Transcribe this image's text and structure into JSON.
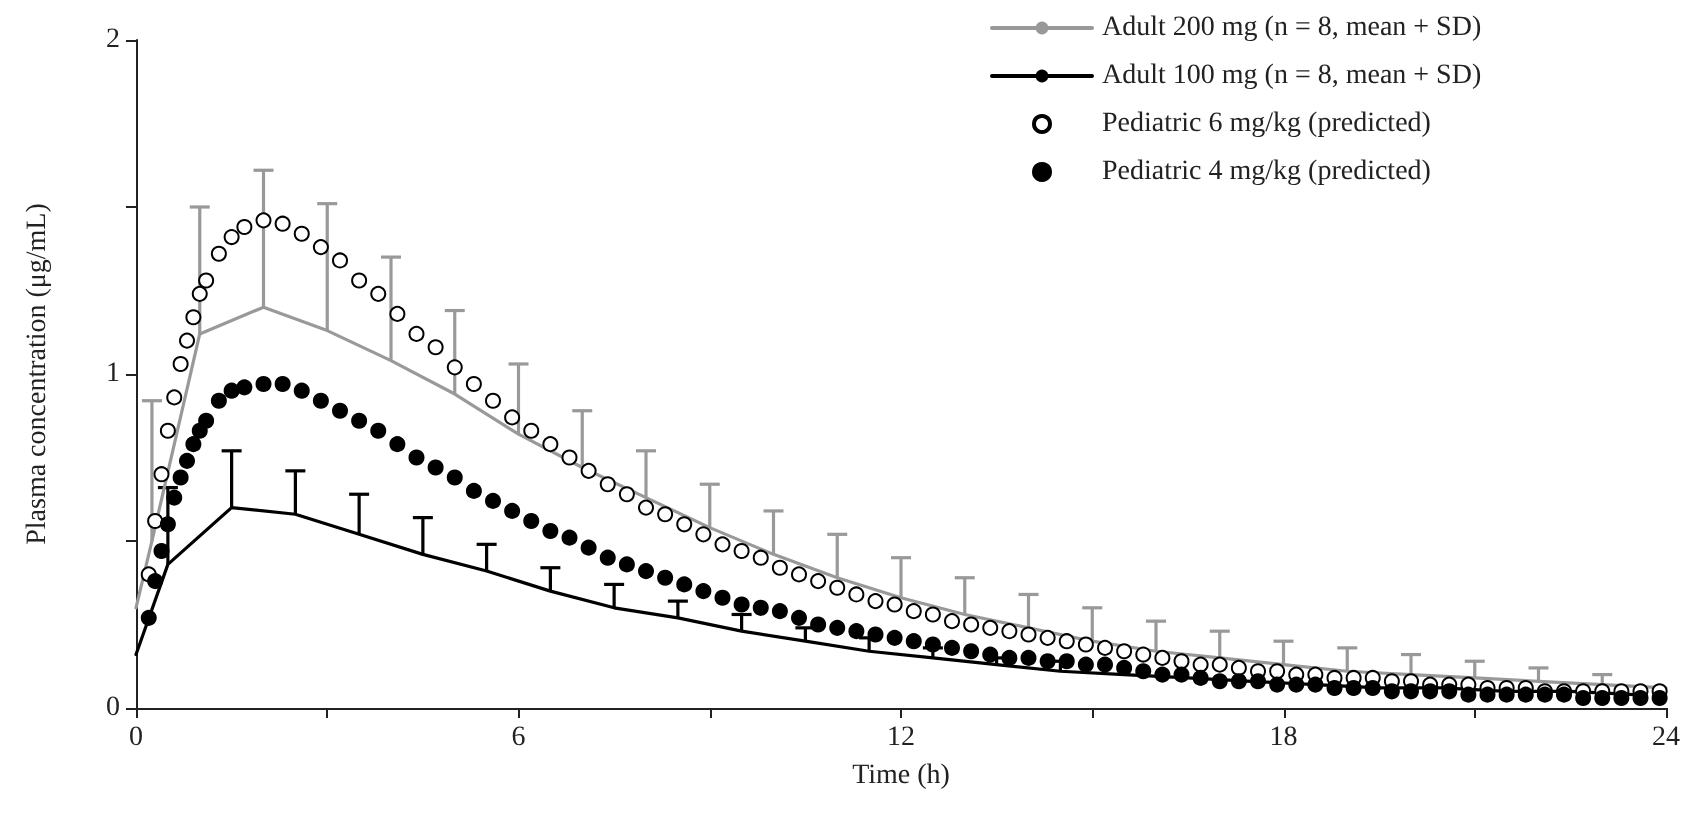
{
  "chart_data": {
    "type": "line",
    "xlabel": "Time (h)",
    "ylabel": "Plasma concentration (μg/mL)",
    "xlim": [
      0,
      24
    ],
    "xticks": [
      0,
      {
        "value": 3,
        "label": null
      },
      6,
      {
        "value": 9,
        "label": null
      },
      12,
      {
        "value": 15,
        "label": null
      },
      18,
      {
        "value": 21,
        "label": null
      },
      24
    ],
    "ylim": [
      0,
      2
    ],
    "yticks": [
      0,
      {
        "value": 0.5,
        "label": null
      },
      1,
      {
        "value": 1.5,
        "label": null
      },
      2
    ],
    "legend": "top right",
    "series": [
      {
        "name": "Adult 200 mg (n = 8, mean + SD)",
        "color": "#999999",
        "marker": "none",
        "line_style": "solid",
        "x": [
          0,
          0.25,
          1,
          2,
          3,
          4,
          5,
          6,
          7,
          8,
          9,
          10,
          11,
          12,
          13,
          14,
          15,
          16,
          17,
          18,
          19,
          20,
          21,
          22,
          23,
          24
        ],
        "values": [
          0.3,
          0.5,
          1.12,
          1.2,
          1.13,
          1.04,
          0.94,
          0.82,
          0.72,
          0.63,
          0.54,
          0.46,
          0.39,
          0.33,
          0.28,
          0.24,
          0.2,
          0.17,
          0.15,
          0.13,
          0.11,
          0.1,
          0.09,
          0.08,
          0.07,
          0.06
        ],
        "errors": [
          null,
          [
            0.5,
            0.92
          ],
          [
            1.12,
            1.5
          ],
          [
            1.2,
            1.61
          ],
          [
            1.13,
            1.51
          ],
          [
            1.04,
            1.35
          ],
          [
            0.94,
            1.19
          ],
          [
            0.82,
            1.03
          ],
          [
            0.72,
            0.89
          ],
          [
            0.63,
            0.77
          ],
          [
            0.54,
            0.67
          ],
          [
            0.46,
            0.59
          ],
          [
            0.39,
            0.52
          ],
          [
            0.33,
            0.45
          ],
          [
            0.28,
            0.39
          ],
          [
            0.24,
            0.34
          ],
          [
            0.2,
            0.3
          ],
          [
            0.17,
            0.26
          ],
          [
            0.15,
            0.23
          ],
          [
            0.13,
            0.2
          ],
          [
            0.11,
            0.18
          ],
          [
            0.1,
            0.16
          ],
          [
            0.09,
            0.14
          ],
          [
            0.08,
            0.12
          ],
          [
            0.07,
            0.1
          ],
          null
        ]
      },
      {
        "name": "Adult 100 mg (n = 8, mean + SD)",
        "color": "#000000",
        "marker": "none",
        "line_style": "solid",
        "x": [
          0,
          0.5,
          1.5,
          2.5,
          3.5,
          4.5,
          5.5,
          6.5,
          7.5,
          8.5,
          9.5,
          10.5,
          11.5,
          12.5,
          13.5,
          14.5,
          15.5,
          16.5,
          17.5,
          18.5,
          19.5,
          20.5,
          21.5,
          22.5,
          23.5
        ],
        "values": [
          0.16,
          0.43,
          0.6,
          0.58,
          0.52,
          0.46,
          0.41,
          0.35,
          0.3,
          0.27,
          0.23,
          0.2,
          0.17,
          0.15,
          0.13,
          0.11,
          0.1,
          0.09,
          0.08,
          0.07,
          0.06,
          0.06,
          0.05,
          0.05,
          0.04
        ],
        "errors": [
          null,
          [
            0.43,
            0.66
          ],
          [
            0.6,
            0.77
          ],
          [
            0.58,
            0.71
          ],
          [
            0.52,
            0.64
          ],
          [
            0.46,
            0.57
          ],
          [
            0.41,
            0.49
          ],
          [
            0.35,
            0.42
          ],
          [
            0.3,
            0.37
          ],
          [
            0.27,
            0.32
          ],
          [
            0.23,
            0.28
          ],
          [
            0.2,
            0.24
          ],
          [
            0.17,
            0.21
          ],
          [
            0.15,
            0.18
          ],
          [
            0.13,
            0.15
          ],
          [
            0.11,
            0.14
          ],
          null,
          null,
          null,
          null,
          null,
          null,
          null,
          null,
          null
        ]
      },
      {
        "name": "Pediatric 6 mg/kg (predicted)",
        "type": "scatter",
        "color": "#ffffff",
        "marker": "circle",
        "x": [
          0.2,
          0.3,
          0.4,
          0.5,
          0.6,
          0.7,
          0.8,
          0.9,
          1.0,
          1.1,
          1.3,
          1.5,
          1.7,
          2.0,
          2.3,
          2.6,
          2.9,
          3.2,
          3.5,
          3.8,
          4.1,
          4.4,
          4.7,
          5.0,
          5.3,
          5.6,
          5.9,
          6.2,
          6.5,
          6.8,
          7.1,
          7.4,
          7.7,
          8.0,
          8.3,
          8.6,
          8.9,
          9.2,
          9.5,
          9.8,
          10.1,
          10.4,
          10.7,
          11.0,
          11.3,
          11.6,
          11.9,
          12.2,
          12.5,
          12.8,
          13.1,
          13.4,
          13.7,
          14.0,
          14.3,
          14.6,
          14.9,
          15.2,
          15.5,
          15.8,
          16.1,
          16.4,
          16.7,
          17.0,
          17.3,
          17.6,
          17.9,
          18.2,
          18.5,
          18.8,
          19.1,
          19.4,
          19.7,
          20.0,
          20.3,
          20.6,
          20.9,
          21.2,
          21.5,
          21.8,
          22.1,
          22.4,
          22.7,
          23.0,
          23.3,
          23.6,
          23.9
        ],
        "values": [
          0.4,
          0.56,
          0.7,
          0.83,
          0.93,
          1.03,
          1.1,
          1.17,
          1.24,
          1.28,
          1.36,
          1.41,
          1.44,
          1.46,
          1.45,
          1.42,
          1.38,
          1.34,
          1.28,
          1.24,
          1.18,
          1.12,
          1.08,
          1.02,
          0.97,
          0.92,
          0.87,
          0.83,
          0.79,
          0.75,
          0.71,
          0.67,
          0.64,
          0.6,
          0.58,
          0.55,
          0.52,
          0.49,
          0.47,
          0.45,
          0.42,
          0.4,
          0.38,
          0.36,
          0.34,
          0.32,
          0.31,
          0.29,
          0.28,
          0.26,
          0.25,
          0.24,
          0.23,
          0.22,
          0.21,
          0.2,
          0.19,
          0.18,
          0.17,
          0.16,
          0.15,
          0.14,
          0.13,
          0.13,
          0.12,
          0.11,
          0.11,
          0.1,
          0.1,
          0.09,
          0.09,
          0.09,
          0.08,
          0.08,
          0.07,
          0.07,
          0.07,
          0.06,
          0.06,
          0.06,
          0.05,
          0.05,
          0.05,
          0.05,
          0.05,
          0.05,
          0.05
        ]
      },
      {
        "name": "Pediatric 4 mg/kg (predicted)",
        "type": "scatter",
        "color": "#000000",
        "marker": "circle",
        "x": [
          0.2,
          0.3,
          0.4,
          0.5,
          0.6,
          0.7,
          0.8,
          0.9,
          1.0,
          1.1,
          1.3,
          1.5,
          1.7,
          2.0,
          2.3,
          2.6,
          2.9,
          3.2,
          3.5,
          3.8,
          4.1,
          4.4,
          4.7,
          5.0,
          5.3,
          5.6,
          5.9,
          6.2,
          6.5,
          6.8,
          7.1,
          7.4,
          7.7,
          8.0,
          8.3,
          8.6,
          8.9,
          9.2,
          9.5,
          9.8,
          10.1,
          10.4,
          10.7,
          11.0,
          11.3,
          11.6,
          11.9,
          12.2,
          12.5,
          12.8,
          13.1,
          13.4,
          13.7,
          14.0,
          14.3,
          14.6,
          14.9,
          15.2,
          15.5,
          15.8,
          16.1,
          16.4,
          16.7,
          17.0,
          17.3,
          17.6,
          17.9,
          18.2,
          18.5,
          18.8,
          19.1,
          19.4,
          19.7,
          20.0,
          20.3,
          20.6,
          20.9,
          21.2,
          21.5,
          21.8,
          22.1,
          22.4,
          22.7,
          23.0,
          23.3,
          23.6,
          23.9
        ],
        "values": [
          0.27,
          0.38,
          0.47,
          0.55,
          0.63,
          0.69,
          0.74,
          0.79,
          0.83,
          0.86,
          0.92,
          0.95,
          0.96,
          0.97,
          0.97,
          0.95,
          0.92,
          0.89,
          0.86,
          0.83,
          0.79,
          0.75,
          0.72,
          0.69,
          0.65,
          0.62,
          0.59,
          0.56,
          0.53,
          0.51,
          0.48,
          0.45,
          0.43,
          0.41,
          0.39,
          0.37,
          0.35,
          0.33,
          0.31,
          0.3,
          0.29,
          0.27,
          0.25,
          0.24,
          0.23,
          0.22,
          0.21,
          0.2,
          0.19,
          0.18,
          0.17,
          0.16,
          0.15,
          0.15,
          0.14,
          0.14,
          0.13,
          0.13,
          0.12,
          0.11,
          0.1,
          0.1,
          0.09,
          0.08,
          0.08,
          0.08,
          0.07,
          0.07,
          0.07,
          0.06,
          0.06,
          0.06,
          0.05,
          0.05,
          0.05,
          0.05,
          0.04,
          0.04,
          0.04,
          0.04,
          0.04,
          0.04,
          0.03,
          0.03,
          0.03,
          0.03,
          0.03
        ]
      }
    ]
  }
}
